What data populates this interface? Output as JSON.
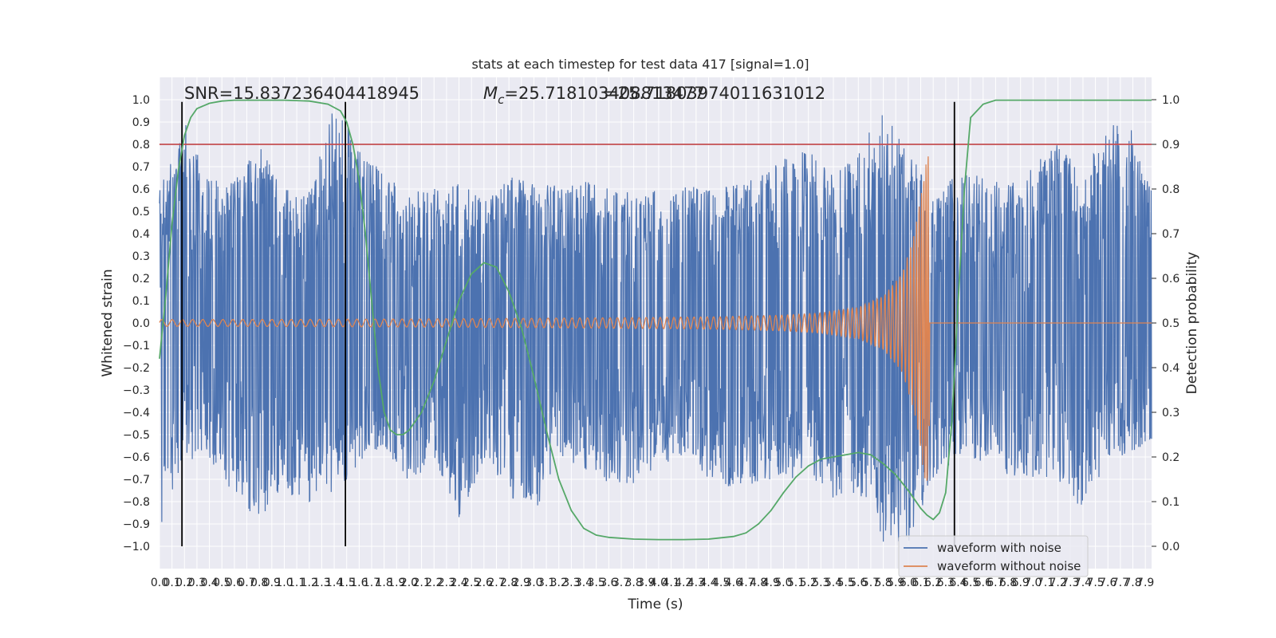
{
  "chart_data": {
    "type": "line",
    "title": "stats at each timestep for test data 417 [signal=1.0]",
    "xlabel": "Time (s)",
    "ylabel": "Whitened strain",
    "ylabel_right": "Detection probability",
    "xlim": [
      0.0,
      7.95
    ],
    "ylim": [
      -1.1,
      1.1
    ],
    "ylim_right": [
      -0.05,
      1.05
    ],
    "x_ticks": [
      "0.0",
      "0.1",
      "0.2",
      "0.3",
      "0.4",
      "0.5",
      "0.6",
      "0.7",
      "0.8",
      "0.9",
      "1.0",
      "1.1",
      "1.2",
      "1.3",
      "1.4",
      "1.5",
      "1.6",
      "1.7",
      "1.8",
      "1.9",
      "2.0",
      "2.1",
      "2.2",
      "2.3",
      "2.4",
      "2.5",
      "2.6",
      "2.7",
      "2.8",
      "2.9",
      "3.0",
      "3.1",
      "3.2",
      "3.3",
      "3.4",
      "3.5",
      "3.6",
      "3.7",
      "3.8",
      "3.9",
      "4.0",
      "4.1",
      "4.2",
      "4.3",
      "4.4",
      "4.5",
      "4.6",
      "4.7",
      "4.8",
      "4.9",
      "5.0",
      "5.1",
      "5.2",
      "5.3",
      "5.4",
      "5.5",
      "5.6",
      "5.7",
      "5.8",
      "5.9",
      "6.0",
      "6.1",
      "6.2",
      "6.3",
      "6.4",
      "6.5",
      "6.6",
      "6.7",
      "6.8",
      "6.9",
      "7.0",
      "7.1",
      "7.2",
      "7.3",
      "7.4",
      "7.5",
      "7.6",
      "7.7",
      "7.8",
      "7.9"
    ],
    "y_ticks": [
      "1.0",
      "0.9",
      "0.8",
      "0.7",
      "0.6",
      "0.5",
      "0.4",
      "0.3",
      "0.2",
      "0.1",
      "0.0",
      "−0.1",
      "−0.2",
      "−0.3",
      "−0.4",
      "−0.5",
      "−0.6",
      "−0.7",
      "−0.8",
      "−0.9",
      "−1.0"
    ],
    "y_tick_values": [
      1.0,
      0.9,
      0.8,
      0.7,
      0.6,
      0.5,
      0.4,
      0.3,
      0.2,
      0.1,
      0.0,
      -0.1,
      -0.2,
      -0.3,
      -0.4,
      -0.5,
      -0.6,
      -0.7,
      -0.8,
      -0.9,
      -1.0
    ],
    "y2_ticks": [
      "1.0",
      "0.9",
      "0.8",
      "0.7",
      "0.6",
      "0.5",
      "0.4",
      "0.3",
      "0.2",
      "0.1",
      "0.0"
    ],
    "y2_tick_values": [
      1.0,
      0.9,
      0.8,
      0.7,
      0.6,
      0.5,
      0.4,
      0.3,
      0.2,
      0.1,
      0.0
    ],
    "annotations": {
      "snr": "SNR=15.837236404418945",
      "mc_symbol": "M",
      "mc_sub": "c",
      "mc_value_a": "=25.718103408813477",
      "mc_value_b": "=25.71803974011631012"
    },
    "legend": {
      "placement": "bottom-right",
      "items": [
        {
          "label": "waveform with noise",
          "color": "#4c72b0"
        },
        {
          "label": "waveform without noise",
          "color": "#dd8452"
        }
      ]
    },
    "threshold": {
      "value": 0.9,
      "axis": "right",
      "color": "#c44e52"
    },
    "vertical_markers_x": [
      0.18,
      1.49,
      6.37
    ],
    "grid": true,
    "colors": {
      "background": "#eaeaf2",
      "grid": "#ffffff",
      "noise": "#4c72b0",
      "clean": "#dd8452",
      "probability": "#55a868",
      "marker": "#000000"
    },
    "series": [
      {
        "name": "waveform with noise",
        "envelope_x": [
          0.0,
          0.2,
          0.4,
          0.6,
          0.8,
          1.0,
          1.2,
          1.4,
          1.6,
          1.8,
          2.0,
          2.2,
          2.4,
          2.6,
          2.8,
          3.0,
          3.2,
          3.4,
          3.6,
          3.8,
          4.0,
          4.2,
          4.4,
          4.6,
          4.8,
          5.0,
          5.2,
          5.4,
          5.6,
          5.8,
          6.0,
          6.2,
          6.4,
          6.6,
          6.8,
          7.0,
          7.2,
          7.4,
          7.6,
          7.8,
          7.95
        ],
        "envelope_upper": [
          0.6,
          0.9,
          0.64,
          0.65,
          0.8,
          0.6,
          0.6,
          0.98,
          0.8,
          0.66,
          0.6,
          0.6,
          0.64,
          0.55,
          0.66,
          0.62,
          0.62,
          0.64,
          0.62,
          0.58,
          0.6,
          0.62,
          0.6,
          0.62,
          0.66,
          0.74,
          0.78,
          0.66,
          0.8,
          0.96,
          0.78,
          0.56,
          0.68,
          0.66,
          0.62,
          0.7,
          0.82,
          0.66,
          0.92,
          0.86,
          0.6
        ],
        "envelope_lower": [
          -0.92,
          -0.62,
          -0.6,
          -0.8,
          -0.9,
          -0.76,
          -0.8,
          -0.76,
          -0.64,
          -0.56,
          -0.74,
          -0.6,
          -0.9,
          -0.62,
          -0.78,
          -0.86,
          -0.6,
          -0.66,
          -0.72,
          -0.72,
          -0.64,
          -0.6,
          -0.7,
          -0.74,
          -0.72,
          -0.68,
          -0.72,
          -0.8,
          -0.76,
          -0.98,
          -1.0,
          -0.7,
          -0.6,
          -0.64,
          -0.68,
          -0.7,
          -0.7,
          -0.84,
          -0.62,
          -0.58,
          -0.55
        ]
      },
      {
        "name": "waveform without noise",
        "amp_x": [
          0.0,
          1.0,
          2.0,
          3.0,
          4.0,
          4.5,
          5.0,
          5.3,
          5.6,
          5.8,
          5.95,
          6.05,
          6.12,
          6.16,
          6.18
        ],
        "amp_y": [
          0.015,
          0.016,
          0.018,
          0.021,
          0.025,
          0.028,
          0.035,
          0.045,
          0.07,
          0.12,
          0.22,
          0.4,
          0.65,
          0.78,
          0.0
        ],
        "freq_x": [
          0.0,
          3.0,
          5.0,
          6.0,
          6.15
        ],
        "freq_hz": [
          12,
          15,
          21,
          35,
          60
        ]
      },
      {
        "name": "detection probability",
        "x": [
          0.0,
          0.05,
          0.1,
          0.15,
          0.2,
          0.25,
          0.3,
          0.4,
          0.5,
          0.6,
          0.8,
          1.0,
          1.2,
          1.35,
          1.45,
          1.5,
          1.55,
          1.6,
          1.65,
          1.7,
          1.75,
          1.8,
          1.85,
          1.9,
          1.95,
          2.0,
          2.1,
          2.2,
          2.3,
          2.4,
          2.5,
          2.6,
          2.7,
          2.8,
          2.9,
          3.0,
          3.1,
          3.2,
          3.3,
          3.4,
          3.5,
          3.6,
          3.8,
          4.0,
          4.2,
          4.4,
          4.6,
          4.7,
          4.8,
          4.9,
          5.0,
          5.1,
          5.2,
          5.3,
          5.4,
          5.5,
          5.6,
          5.7,
          5.8,
          5.9,
          6.0,
          6.1,
          6.15,
          6.2,
          6.25,
          6.3,
          6.35,
          6.4,
          6.45,
          6.5,
          6.6,
          6.7,
          7.0,
          7.5,
          7.95
        ],
        "y": [
          0.42,
          0.56,
          0.72,
          0.84,
          0.92,
          0.96,
          0.98,
          0.992,
          0.997,
          0.999,
          0.999,
          0.999,
          0.997,
          0.99,
          0.975,
          0.95,
          0.9,
          0.82,
          0.7,
          0.55,
          0.4,
          0.3,
          0.26,
          0.25,
          0.25,
          0.26,
          0.3,
          0.37,
          0.46,
          0.55,
          0.61,
          0.635,
          0.625,
          0.57,
          0.49,
          0.38,
          0.26,
          0.15,
          0.08,
          0.04,
          0.025,
          0.02,
          0.016,
          0.015,
          0.015,
          0.016,
          0.022,
          0.03,
          0.05,
          0.08,
          0.12,
          0.155,
          0.18,
          0.195,
          0.2,
          0.205,
          0.21,
          0.205,
          0.185,
          0.16,
          0.125,
          0.085,
          0.07,
          0.06,
          0.075,
          0.12,
          0.28,
          0.55,
          0.8,
          0.96,
          0.99,
          0.999,
          0.999,
          0.999,
          0.999
        ]
      }
    ]
  }
}
